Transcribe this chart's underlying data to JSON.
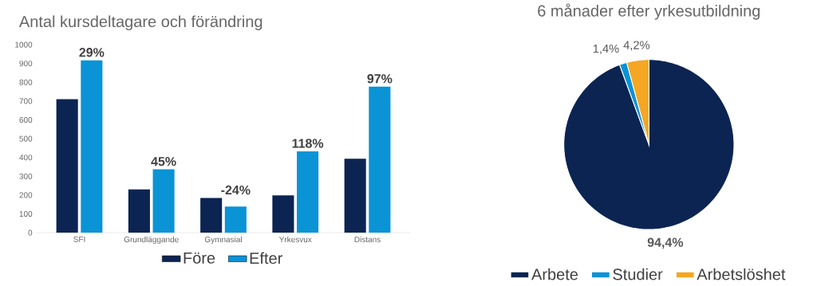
{
  "chart_data": [
    {
      "type": "bar",
      "title": "Antal kursdeltagare och förändring",
      "categories": [
        "SFI",
        "Grundläggande",
        "Gymnasial",
        "Yrkesvux",
        "Distans"
      ],
      "ylim": [
        0,
        1000
      ],
      "yticks": [
        0,
        100,
        200,
        300,
        400,
        500,
        600,
        700,
        800,
        900,
        1000
      ],
      "legend": "bottom",
      "series": [
        {
          "name": "Före",
          "color": "#0b2452",
          "values": [
            710,
            230,
            185,
            198,
            393
          ]
        },
        {
          "name": "Efter",
          "color": "#0a93d5",
          "values": [
            917,
            337,
            139,
            433,
            777
          ]
        }
      ],
      "annotations": [
        {
          "text": "29%",
          "x": "SFI",
          "y": 917
        },
        {
          "text": "45%",
          "x": "Grundläggande",
          "y": 337
        },
        {
          "text": "-24%",
          "x": "Gymnasial",
          "y": 185
        },
        {
          "text": "118%",
          "x": "Yrkesvux",
          "y": 433
        },
        {
          "text": "97%",
          "x": "Distans",
          "y": 777
        }
      ]
    },
    {
      "type": "pie",
      "title": "6 månader efter yrkesutbildning",
      "categories": [
        "Arbete",
        "Studier",
        "Arbetslöshet"
      ],
      "values": [
        94.4,
        1.4,
        4.2
      ],
      "colors": [
        "#0b2452",
        "#0a93d5",
        "#f5a623"
      ],
      "value_labels": [
        "94,4%",
        "1,4%",
        "4,2%"
      ],
      "legend": "bottom"
    }
  ]
}
